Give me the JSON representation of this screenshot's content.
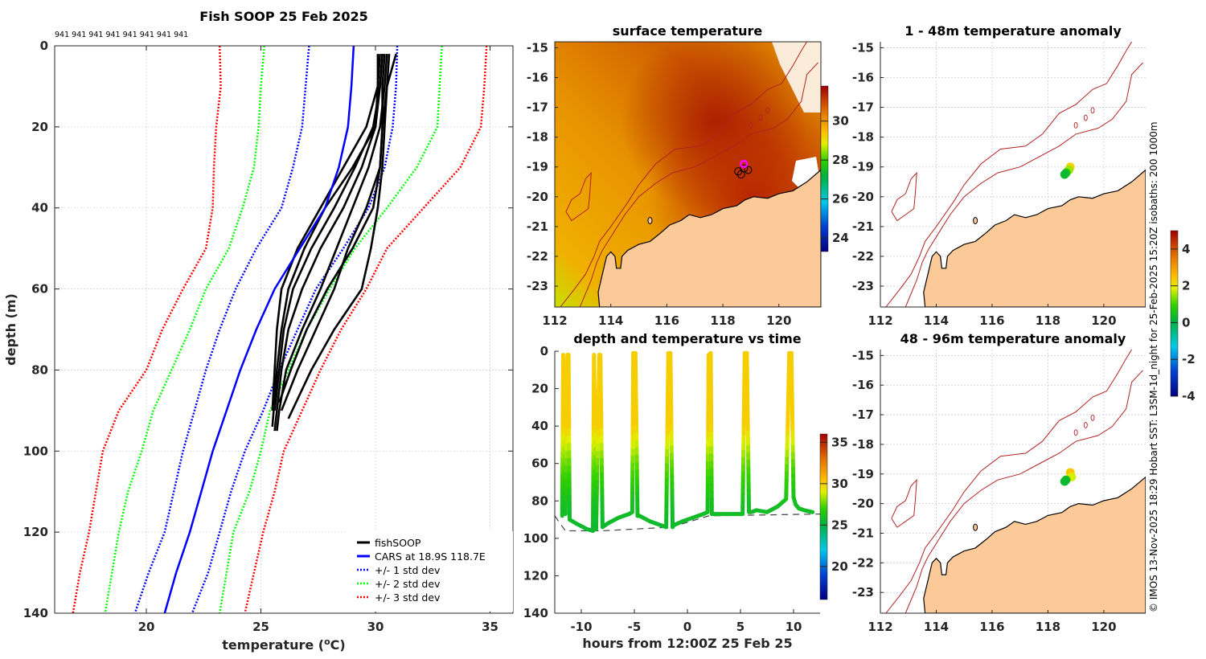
{
  "figure_title": "Fish SOOP 25 Feb 2025",
  "colors": {
    "fishsoop": "#000000",
    "cars": "#0000ff",
    "std1": "#0000ff",
    "std2": "#00ff00",
    "std3": "#ff0000",
    "land": "#fcc998",
    "isobath": "#b22222",
    "vessel_marker": "#ff00ff"
  },
  "credit": "© IMOS 13-Nov-2025 18:29 Hobart SST: L3SM-1d_night for 25-Feb-2025 15:20Z isobaths: 200  1000m",
  "chart_data": [
    {
      "id": "profile",
      "type": "line",
      "title": "Fish SOOP 25 Feb 2025",
      "top_annotation": "941 941 941 941 941 941 941 941",
      "xlabel": "temperature (°C)",
      "xlabel_base": "temperature (",
      "xlabel_sup": "o",
      "xlabel_end": "C)",
      "ylabel": "depth (m)",
      "xlim": [
        16,
        36
      ],
      "ylim": [
        140,
        0
      ],
      "xticks": [
        20,
        25,
        30,
        35
      ],
      "yticks": [
        0,
        20,
        40,
        60,
        80,
        100,
        120,
        140
      ],
      "grid": true,
      "legend_position": "bottom-right",
      "legend": [
        "fishSOOP",
        "CARS at 18.9S 118.7E",
        "+/- 1 std dev",
        "+/- 2 std dev",
        "+/- 3 std dev"
      ],
      "depth": [
        0,
        10,
        20,
        30,
        40,
        50,
        60,
        70,
        80,
        90,
        100,
        110,
        120,
        130,
        140
      ],
      "cars": [
        29.05,
        28.95,
        28.8,
        28.4,
        27.8,
        26.7,
        25.6,
        24.8,
        24.1,
        23.5,
        22.9,
        22.4,
        21.9,
        21.3,
        20.8
      ],
      "std_minus1": [
        27.1,
        26.95,
        26.8,
        26.4,
        25.9,
        24.8,
        23.9,
        23.2,
        22.6,
        22.1,
        21.6,
        21.2,
        20.8,
        20.1,
        19.5
      ],
      "std_plus1": [
        30.95,
        30.9,
        30.75,
        30.4,
        29.7,
        28.6,
        27.4,
        26.6,
        25.8,
        25.1,
        24.3,
        23.7,
        23.2,
        22.7,
        22.0
      ],
      "std_minus2": [
        25.15,
        25.0,
        24.9,
        24.7,
        24.2,
        23.6,
        22.6,
        21.9,
        21.1,
        20.3,
        19.8,
        19.2,
        18.8,
        18.5,
        18.2
      ],
      "std_plus2": [
        32.9,
        32.8,
        32.7,
        31.8,
        30.5,
        29.1,
        28.0,
        27.0,
        26.2,
        25.4,
        25.0,
        24.5,
        23.8,
        23.5,
        23.2
      ],
      "std_minus3": [
        23.2,
        23.25,
        23.05,
        22.95,
        22.9,
        22.6,
        21.6,
        20.7,
        20.0,
        18.8,
        18.1,
        17.8,
        17.5,
        17.1,
        16.8
      ],
      "std_plus3": [
        34.85,
        34.75,
        34.6,
        33.7,
        32.1,
        30.5,
        29.6,
        28.5,
        27.6,
        26.8,
        26.0,
        25.6,
        25.1,
        24.7,
        24.3
      ],
      "fishsoop_profiles": [
        {
          "depth": [
            2,
            10,
            20,
            30,
            40,
            50,
            60,
            70,
            80,
            90,
            95
          ],
          "temp": [
            30.3,
            30.2,
            30.0,
            29.4,
            28.6,
            27.6,
            26.8,
            26.2,
            25.9,
            25.7,
            25.6
          ]
        },
        {
          "depth": [
            2,
            10,
            20,
            30,
            40,
            50,
            60,
            70,
            80,
            90,
            95
          ],
          "temp": [
            30.5,
            30.4,
            30.2,
            29.7,
            29.0,
            28.3,
            27.6,
            26.8,
            26.1,
            25.8,
            25.7
          ]
        },
        {
          "depth": [
            2,
            10,
            20,
            30,
            40,
            50,
            60,
            70,
            80,
            88
          ],
          "temp": [
            30.4,
            30.3,
            30.3,
            30.2,
            29.9,
            29.0,
            27.9,
            27.0,
            26.3,
            25.8
          ]
        },
        {
          "depth": [
            2,
            10,
            20,
            30,
            40,
            50,
            60,
            70,
            80,
            90
          ],
          "temp": [
            30.2,
            30.1,
            29.6,
            28.6,
            27.6,
            26.6,
            25.9,
            25.7,
            25.6,
            25.5
          ]
        },
        {
          "depth": [
            2,
            10,
            20,
            30,
            40,
            50,
            60,
            70,
            80,
            92
          ],
          "temp": [
            30.6,
            30.5,
            30.4,
            30.3,
            30.1,
            29.8,
            29.4,
            28.2,
            27.2,
            26.2
          ]
        },
        {
          "depth": [
            2,
            10,
            20,
            30,
            40,
            50,
            60,
            70,
            80,
            90
          ],
          "temp": [
            30.3,
            30.2,
            29.9,
            29.1,
            28.2,
            27.2,
            26.4,
            26.0,
            25.8,
            25.6
          ]
        },
        {
          "depth": [
            2,
            10,
            20,
            30,
            40,
            50,
            60,
            70,
            80,
            90
          ],
          "temp": [
            30.9,
            30.5,
            30.3,
            30.2,
            29.6,
            28.8,
            28.2,
            27.4,
            26.6,
            25.9
          ]
        },
        {
          "depth": [
            2,
            10,
            20,
            30,
            40,
            50,
            60,
            70,
            80,
            94
          ],
          "temp": [
            30.1,
            30.1,
            30.0,
            29.0,
            27.8,
            26.9,
            26.2,
            25.9,
            25.7,
            25.5
          ]
        }
      ]
    },
    {
      "id": "sst_map",
      "type": "heatmap",
      "title": "surface temperature",
      "xlim": [
        112,
        121.5
      ],
      "ylim": [
        -23.7,
        -14.8
      ],
      "xticks": [
        112,
        114,
        116,
        118,
        120
      ],
      "yticks": [
        -15,
        -16,
        -17,
        -18,
        -19,
        -20,
        -21,
        -22,
        -23
      ],
      "colorbar": {
        "range": [
          23.3,
          31.8
        ],
        "ticks": [
          24,
          26,
          28,
          30
        ]
      },
      "vessel_position": {
        "lon": 118.75,
        "lat": -18.9
      },
      "profile_positions": [
        {
          "lon": 118.55,
          "lat": -19.15
        },
        {
          "lon": 118.65,
          "lat": -19.25
        },
        {
          "lon": 118.9,
          "lat": -19.1
        },
        {
          "lon": 118.75,
          "lat": -19.05
        }
      ]
    },
    {
      "id": "depth_time",
      "type": "scatter",
      "title": "depth and temperature vs time",
      "xlabel": "hours from 12:00Z 25 Feb 25",
      "xlim": [
        -12.5,
        12.5
      ],
      "ylim": [
        140,
        0
      ],
      "xticks": [
        -10,
        -5,
        0,
        5,
        10
      ],
      "yticks": [
        0,
        20,
        40,
        60,
        80,
        100,
        120,
        140
      ],
      "colorbar": {
        "range": [
          16,
          36
        ],
        "ticks": [
          20,
          25,
          30,
          35
        ]
      },
      "track": {
        "hours": [
          -11.8,
          -11.7,
          -11.5,
          -11.3,
          -11.2,
          -11.1,
          -10.5,
          -9.5,
          -8.9,
          -8.8,
          -8.6,
          -8.3,
          -8.2,
          -8.0,
          -7.5,
          -6.5,
          -5.5,
          -5.2,
          -5.1,
          -4.9,
          -4.7,
          -4.5,
          -3.5,
          -2.5,
          -2.0,
          -1.8,
          -1.6,
          -1.4,
          -1.3,
          -0.5,
          0.5,
          1.5,
          1.9,
          2.0,
          2.2,
          2.3,
          2.5,
          3.5,
          4.5,
          5.2,
          5.4,
          5.6,
          5.8,
          6.0,
          6.5,
          7.5,
          8.5,
          9.3,
          9.6,
          9.8,
          10.0,
          10.2,
          10.5,
          11.0,
          11.8
        ],
        "depth": [
          88,
          2,
          87,
          2,
          2,
          90,
          92,
          95,
          96,
          2,
          95,
          2,
          2,
          94,
          92,
          89,
          87,
          86,
          1,
          1,
          88,
          88,
          91,
          93,
          94,
          1,
          1,
          94,
          93,
          91,
          89,
          87,
          86,
          2,
          1,
          87,
          87,
          87,
          87,
          87,
          1,
          1,
          86,
          86,
          85,
          86,
          83,
          79,
          1,
          1,
          78,
          82,
          84,
          85,
          86
        ]
      },
      "bottom_depth": {
        "hours": [
          -12.5,
          -11.5,
          -8,
          -1.5,
          2.0,
          12.5
        ],
        "depth": [
          88,
          96,
          96,
          94,
          88,
          87
        ]
      }
    },
    {
      "id": "anomaly_shallow",
      "type": "scatter",
      "title": "1 - 48m temperature anomaly",
      "xlim": [
        112,
        121.5
      ],
      "ylim": [
        -23.7,
        -14.8
      ],
      "xticks": [
        112,
        114,
        116,
        118,
        120
      ],
      "yticks": [
        -15,
        -16,
        -17,
        -18,
        -19,
        -20,
        -21,
        -22,
        -23
      ],
      "colorbar": {
        "range": [
          -4,
          5
        ],
        "ticks": [
          -4,
          -2,
          0,
          2,
          4
        ]
      },
      "points": [
        {
          "lon": 118.8,
          "lat": -19.0,
          "anomaly": 2.2
        },
        {
          "lon": 118.75,
          "lat": -19.1,
          "anomaly": 1.5
        },
        {
          "lon": 118.65,
          "lat": -19.2,
          "anomaly": 0.6
        },
        {
          "lon": 118.6,
          "lat": -19.25,
          "anomaly": 0.3
        }
      ]
    },
    {
      "id": "anomaly_deep",
      "type": "scatter",
      "title": "48 - 96m temperature anomaly",
      "xlim": [
        112,
        121.5
      ],
      "ylim": [
        -23.7,
        -14.8
      ],
      "xticks": [
        112,
        114,
        116,
        118,
        120
      ],
      "yticks": [
        -15,
        -16,
        -17,
        -18,
        -19,
        -20,
        -21,
        -22,
        -23
      ],
      "colorbar": {
        "range": [
          -4,
          5
        ],
        "ticks": [
          -4,
          -2,
          0,
          2,
          4
        ]
      },
      "points": [
        {
          "lon": 118.8,
          "lat": -18.95,
          "anomaly": 2.4
        },
        {
          "lon": 118.85,
          "lat": -19.1,
          "anomaly": 1.8
        },
        {
          "lon": 118.65,
          "lat": -19.2,
          "anomaly": 0.5
        },
        {
          "lon": 118.6,
          "lat": -19.25,
          "anomaly": 0.3
        }
      ]
    }
  ]
}
